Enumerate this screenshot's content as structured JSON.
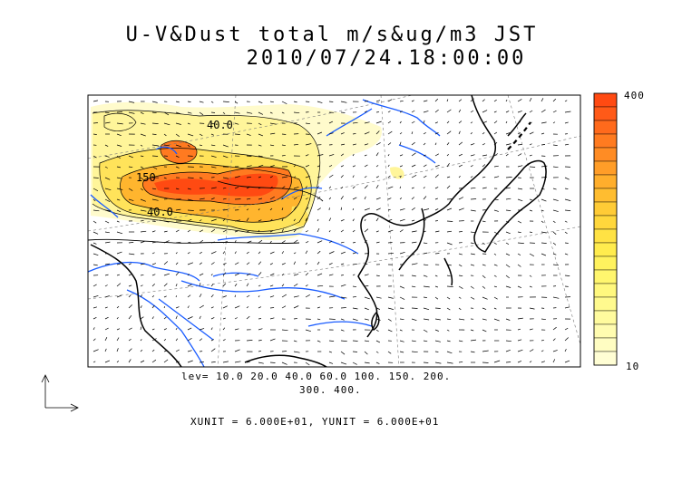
{
  "title_line1": "U-V&Dust total m/s&ug/m3 JST",
  "title_line2": "2010/07/24.18:00:00",
  "levels_line1": "lev= 10.0 20.0 40.0 60.0 100. 150. 200.",
  "levels_line2": "300. 400.",
  "units_text": "XUNIT = 6.000E+01, YUNIT = 6.000E+01",
  "colorbar": {
    "max_label": "400",
    "min_label": "10",
    "colors": [
      "#ff4a12",
      "#ff5a18",
      "#ff6a1c",
      "#ff7b20",
      "#ff8c24",
      "#ff9d28",
      "#ffae2c",
      "#ffbd30",
      "#ffcb36",
      "#ffd73c",
      "#ffe244",
      "#ffec4e",
      "#fff25e",
      "#fff66e",
      "#fff87e",
      "#fffa8e",
      "#fffb9e",
      "#fffcb0",
      "#fffdc2",
      "#fffed4"
    ]
  },
  "contour_labels": [
    "150",
    "40.0",
    "40.0"
  ],
  "colors": {
    "coast": "#000000",
    "rivers": "#1a5cff",
    "dust_low": "#fff8a0",
    "dust_high": "#ff4a12"
  }
}
